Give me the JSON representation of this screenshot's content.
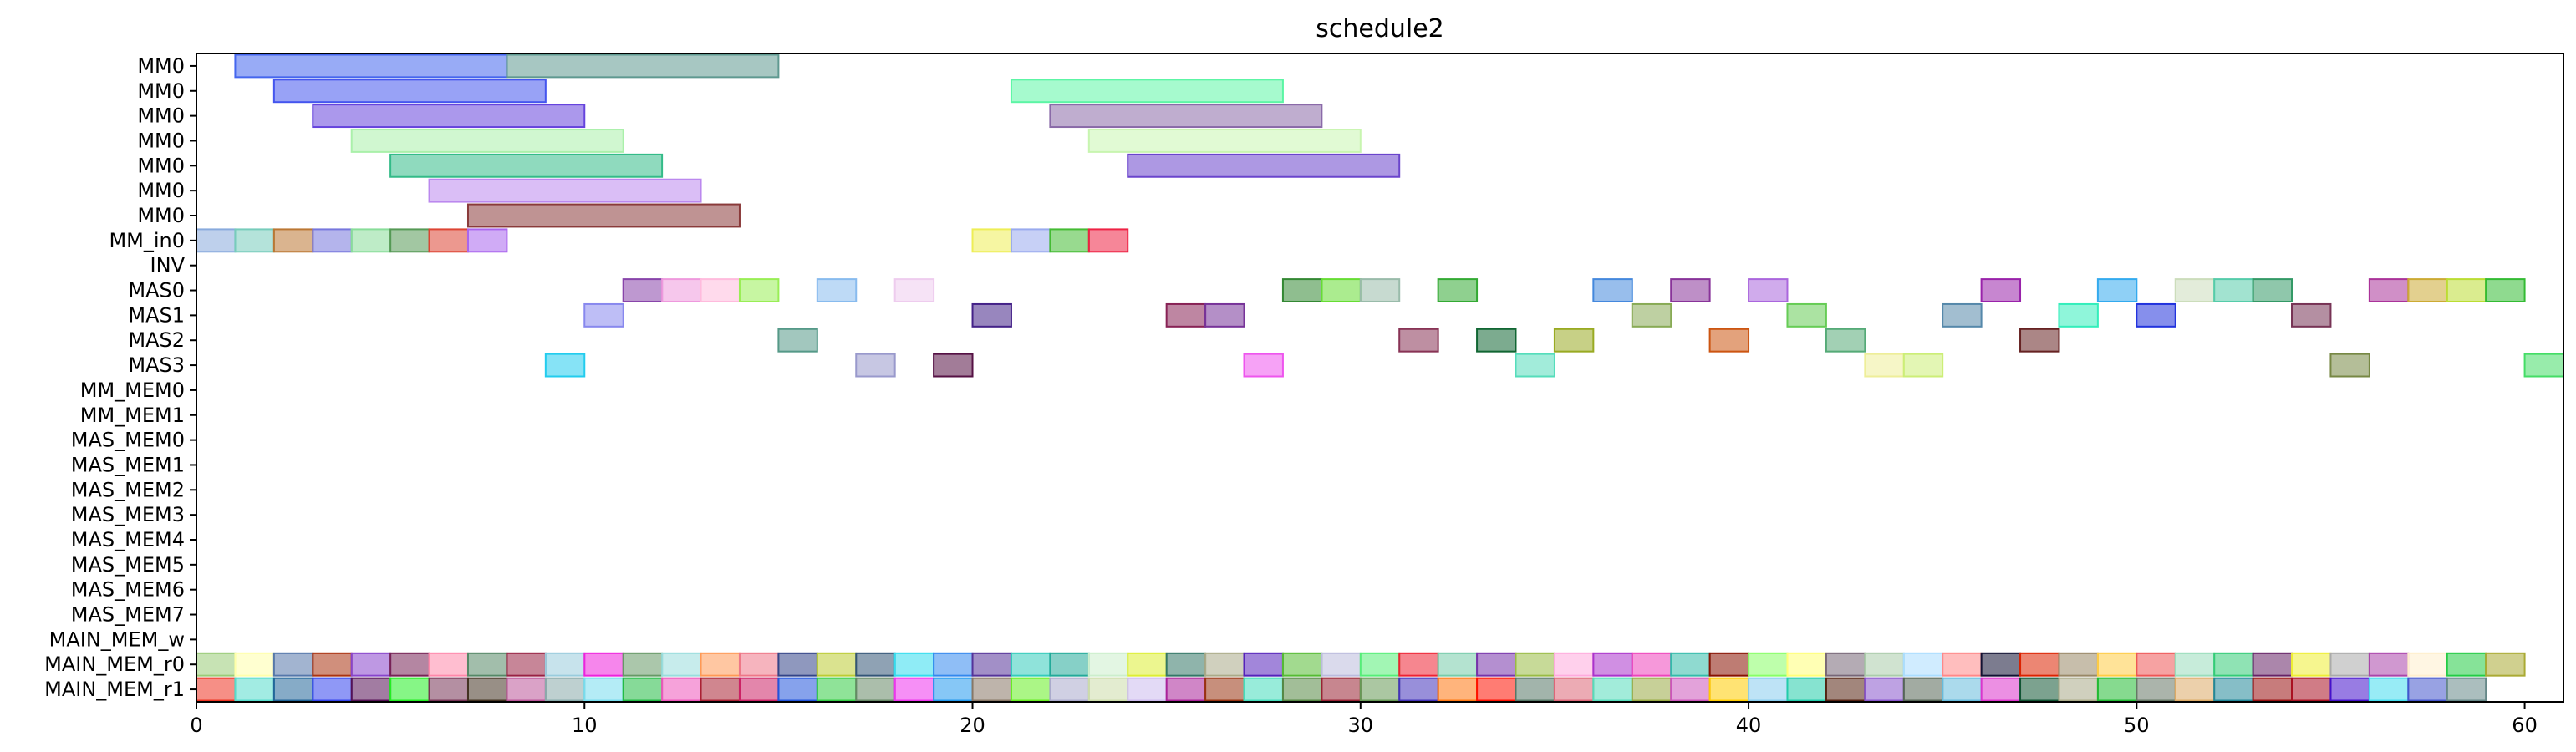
{
  "chart_data": {
    "type": "gantt",
    "title": "schedule2",
    "xlabel": "",
    "ylabel": "",
    "xlim": [
      0,
      61
    ],
    "x_ticks": [
      0,
      10,
      20,
      30,
      40,
      50,
      60
    ],
    "grid": false,
    "rows": [
      "MM0",
      "MM0",
      "MM0",
      "MM0",
      "MM0",
      "MM0",
      "MM0",
      "MM_in0",
      "INV",
      "MAS0",
      "MAS1",
      "MAS2",
      "MAS3",
      "MM_MEM0",
      "MM_MEM1",
      "MAS_MEM0",
      "MAS_MEM1",
      "MAS_MEM2",
      "MAS_MEM3",
      "MAS_MEM4",
      "MAS_MEM5",
      "MAS_MEM6",
      "MAS_MEM7",
      "MAIN_MEM_w",
      "MAIN_MEM_r0",
      "MAIN_MEM_r1"
    ],
    "tasks": [
      {
        "row": 0,
        "start": 1,
        "end": 8,
        "color": "#4466ee"
      },
      {
        "row": 0,
        "start": 8,
        "end": 15,
        "color": "#5f9990"
      },
      {
        "row": 1,
        "start": 2,
        "end": 9,
        "color": "#4455ee"
      },
      {
        "row": 1,
        "start": 21,
        "end": 28,
        "color": "#5cf5a5"
      },
      {
        "row": 2,
        "start": 3,
        "end": 10,
        "color": "#6644dd"
      },
      {
        "row": 2,
        "start": 22,
        "end": 29,
        "color": "#8a6aa8"
      },
      {
        "row": 3,
        "start": 4,
        "end": 11,
        "color": "#aaf0aa"
      },
      {
        "row": 3,
        "start": 23,
        "end": 30,
        "color": "#c8f5b0"
      },
      {
        "row": 4,
        "start": 5,
        "end": 12,
        "color": "#33bb88"
      },
      {
        "row": 4,
        "start": 24,
        "end": 31,
        "color": "#6a44cc"
      },
      {
        "row": 5,
        "start": 6,
        "end": 13,
        "color": "#bb88ee"
      },
      {
        "row": 6,
        "start": 7,
        "end": 14,
        "color": "#8a3a3a"
      },
      {
        "row": 7,
        "start": 0,
        "end": 1,
        "color": "#88aadd"
      },
      {
        "row": 7,
        "start": 1,
        "end": 2,
        "color": "#77ccbb"
      },
      {
        "row": 7,
        "start": 2,
        "end": 3,
        "color": "#bb7733"
      },
      {
        "row": 7,
        "start": 3,
        "end": 4,
        "color": "#7777dd"
      },
      {
        "row": 7,
        "start": 4,
        "end": 5,
        "color": "#88dd99"
      },
      {
        "row": 7,
        "start": 5,
        "end": 6,
        "color": "#559955"
      },
      {
        "row": 7,
        "start": 6,
        "end": 7,
        "color": "#dd4433"
      },
      {
        "row": 7,
        "start": 7,
        "end": 8,
        "color": "#aa66ee"
      },
      {
        "row": 7,
        "start": 20,
        "end": 21,
        "color": "#eeee55"
      },
      {
        "row": 7,
        "start": 21,
        "end": 22,
        "color": "#99aaee"
      },
      {
        "row": 7,
        "start": 22,
        "end": 23,
        "color": "#44bb33"
      },
      {
        "row": 7,
        "start": 23,
        "end": 24,
        "color": "#ee2244"
      },
      {
        "row": 9,
        "start": 11,
        "end": 12,
        "color": "#8844aa"
      },
      {
        "row": 9,
        "start": 12,
        "end": 13,
        "color": "#ee99dd"
      },
      {
        "row": 9,
        "start": 13,
        "end": 14,
        "color": "#ffbbdd"
      },
      {
        "row": 9,
        "start": 14,
        "end": 15,
        "color": "#99ee55"
      },
      {
        "row": 9,
        "start": 16,
        "end": 17,
        "color": "#88bbee"
      },
      {
        "row": 9,
        "start": 18,
        "end": 19,
        "color": "#eeccee"
      },
      {
        "row": 9,
        "start": 28,
        "end": 29,
        "color": "#338833"
      },
      {
        "row": 9,
        "start": 29,
        "end": 30,
        "color": "#66dd33"
      },
      {
        "row": 9,
        "start": 30,
        "end": 31,
        "color": "#99bbaa"
      },
      {
        "row": 9,
        "start": 32,
        "end": 33,
        "color": "#33aa33"
      },
      {
        "row": 9,
        "start": 36,
        "end": 37,
        "color": "#4488dd"
      },
      {
        "row": 9,
        "start": 38,
        "end": 39,
        "color": "#883399"
      },
      {
        "row": 9,
        "start": 40,
        "end": 41,
        "color": "#aa66dd"
      },
      {
        "row": 9,
        "start": 46,
        "end": 47,
        "color": "#9922aa"
      },
      {
        "row": 9,
        "start": 49,
        "end": 50,
        "color": "#33aaee"
      },
      {
        "row": 9,
        "start": 51,
        "end": 52,
        "color": "#ccddbb"
      },
      {
        "row": 9,
        "start": 52,
        "end": 53,
        "color": "#55ccaa"
      },
      {
        "row": 9,
        "start": 53,
        "end": 54,
        "color": "#339966"
      },
      {
        "row": 9,
        "start": 56,
        "end": 57,
        "color": "#aa3399"
      },
      {
        "row": 9,
        "start": 57,
        "end": 58,
        "color": "#ccaa33"
      },
      {
        "row": 9,
        "start": 58,
        "end": 59,
        "color": "#bbdd33"
      },
      {
        "row": 9,
        "start": 59,
        "end": 60,
        "color": "#33bb33"
      },
      {
        "row": 10,
        "start": 10,
        "end": 11,
        "color": "#8888ee"
      },
      {
        "row": 10,
        "start": 20,
        "end": 21,
        "color": "#442288"
      },
      {
        "row": 10,
        "start": 25,
        "end": 26,
        "color": "#882255"
      },
      {
        "row": 10,
        "start": 26,
        "end": 27,
        "color": "#773399"
      },
      {
        "row": 10,
        "start": 37,
        "end": 38,
        "color": "#88aa55"
      },
      {
        "row": 10,
        "start": 41,
        "end": 42,
        "color": "#66cc55"
      },
      {
        "row": 10,
        "start": 45,
        "end": 46,
        "color": "#5588aa"
      },
      {
        "row": 10,
        "start": 48,
        "end": 49,
        "color": "#33eebb"
      },
      {
        "row": 10,
        "start": 50,
        "end": 51,
        "color": "#2233dd"
      },
      {
        "row": 10,
        "start": 54,
        "end": 55,
        "color": "#773355"
      },
      {
        "row": 11,
        "start": 15,
        "end": 16,
        "color": "#559988"
      },
      {
        "row": 11,
        "start": 31,
        "end": 32,
        "color": "#883355"
      },
      {
        "row": 11,
        "start": 33,
        "end": 34,
        "color": "#116633"
      },
      {
        "row": 11,
        "start": 35,
        "end": 36,
        "color": "#99aa22"
      },
      {
        "row": 11,
        "start": 39,
        "end": 40,
        "color": "#cc5511"
      },
      {
        "row": 11,
        "start": 42,
        "end": 43,
        "color": "#55aa77"
      },
      {
        "row": 11,
        "start": 47,
        "end": 48,
        "color": "#662222"
      },
      {
        "row": 12,
        "start": 9,
        "end": 10,
        "color": "#22ccee"
      },
      {
        "row": 12,
        "start": 17,
        "end": 18,
        "color": "#9999cc"
      },
      {
        "row": 12,
        "start": 19,
        "end": 20,
        "color": "#551144"
      },
      {
        "row": 12,
        "start": 27,
        "end": 28,
        "color": "#ee55ee"
      },
      {
        "row": 12,
        "start": 34,
        "end": 35,
        "color": "#55ddbb"
      },
      {
        "row": 12,
        "start": 43,
        "end": 44,
        "color": "#eeee99"
      },
      {
        "row": 12,
        "start": 44,
        "end": 45,
        "color": "#ccee77"
      },
      {
        "row": 12,
        "start": 55,
        "end": 56,
        "color": "#778844"
      },
      {
        "row": 12,
        "start": 60,
        "end": 61,
        "color": "#44dd66"
      }
    ],
    "fill_rows": [
      {
        "row": 24,
        "colors": [
          "#99cc77",
          "#ffffaa",
          "#5577aa",
          "#aa3311",
          "#8844cc",
          "#772255",
          "#ff88aa",
          "#558866",
          "#992244",
          "#99ccdd",
          "#ee22dd",
          "#669966",
          "#99dddd",
          "#ff9955",
          "#ee7788",
          "#334488",
          "#bbcc33",
          "#335577",
          "#33ddee",
          "#3388ee",
          "#553399",
          "#33ccbb",
          "#22aa99",
          "#cceecc",
          "#ddee33",
          "#337766",
          "#aaaa88",
          "#5522bb",
          "#55bb33",
          "#bbbbdd",
          "#55ee77",
          "#ee2233",
          "#77ccaa",
          "#7733aa",
          "#99bb44",
          "#ffaadd",
          "#aa33cc",
          "#ee44bb",
          "#33bbaa",
          "#881100",
          "#88ff66",
          "#ffff77",
          "#776677",
          "#aaccaa",
          "#aaddff",
          "#ff8888",
          "#111133",
          "#dd2200",
          "#998866",
          "#ffcc44",
          "#ee5555",
          "#99ddbb",
          "#33cc77",
          "#662266",
          "#eeee33",
          "#aaaaaa",
          "#aa44aa",
          "#ffeecc",
          "#22cc44",
          "#aaaa33"
        ]
      },
      {
        "row": 25,
        "colors": [
          "#ee3322",
          "#55ddcc",
          "#226699",
          "#3344ee",
          "#551155",
          "#22ee22",
          "#773355",
          "#443322",
          "#bb5599",
          "#88aaaa",
          "#77ddee",
          "#22bb44",
          "#ee55bb",
          "#aa2233",
          "#cc2266",
          "#2255dd",
          "#33cc44",
          "#668866",
          "#ee33ee",
          "#2299ee",
          "#887766",
          "#66ee22",
          "#aaaacc",
          "#ccddaa",
          "#ccbbee",
          "#aa2299",
          "#993311",
          "#44ddbb",
          "#558844",
          "#992233",
          "#669955",
          "#4433bb",
          "#ff7711",
          "#ff1100",
          "#557766",
          "#dd6677",
          "#55ddbb",
          "#99aa44",
          "#cc55bb",
          "#ffcc00",
          "#88ccee",
          "#22ccaa",
          "#552211",
          "#8855cc",
          "#556655",
          "#66bbdd",
          "#dd33cc",
          "#115533",
          "#aaaa88",
          "#22bb33",
          "#667766",
          "#ddaa66",
          "#228899",
          "#991111",
          "#aa1122",
          "#4411cc",
          "#44ddee",
          "#4455cc",
          "#668888"
        ]
      }
    ]
  }
}
